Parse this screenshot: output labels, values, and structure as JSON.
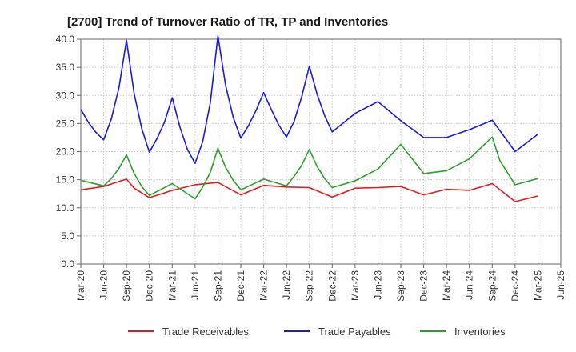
{
  "chart_data": {
    "type": "line",
    "title": "[2700]  Trend of Turnover Ratio of TR, TP and Inventories",
    "xlabel": "",
    "ylabel": "",
    "ylim": [
      0,
      40
    ],
    "yticks": [
      "0.0",
      "5.0",
      "10.0",
      "15.0",
      "20.0",
      "25.0",
      "30.0",
      "35.0",
      "40.0"
    ],
    "xticks": [
      "Mar-20",
      "Jun-20",
      "Sep-20",
      "Dec-20",
      "Mar-21",
      "Jun-21",
      "Sep-21",
      "Dec-21",
      "Mar-22",
      "Jun-22",
      "Sep-22",
      "Dec-22",
      "Mar-23",
      "Jun-23",
      "Sep-23",
      "Dec-23",
      "Mar-24",
      "Jun-24",
      "Sep-24",
      "Dec-24",
      "Mar-25",
      "Jun-25"
    ],
    "grid": true,
    "legend_position": "bottom",
    "series": [
      {
        "name": "Trade Receivables",
        "color": "#e8191c",
        "points": [
          [
            "Mar-20",
            13.2
          ],
          [
            "Jun-20",
            13.8
          ],
          [
            "Sep-20",
            15.1
          ],
          [
            "Oct-20",
            13.5
          ],
          [
            "Dec-20",
            11.8
          ],
          [
            "Mar-21",
            13.1
          ],
          [
            "Jun-21",
            14.1
          ],
          [
            "Sep-21",
            14.5
          ],
          [
            "Dec-21",
            12.3
          ],
          [
            "Mar-22",
            14.0
          ],
          [
            "Jun-22",
            13.7
          ],
          [
            "Sep-22",
            13.6
          ],
          [
            "Dec-22",
            11.9
          ],
          [
            "Mar-23",
            13.5
          ],
          [
            "Jun-23",
            13.6
          ],
          [
            "Sep-23",
            13.8
          ],
          [
            "Dec-23",
            12.3
          ],
          [
            "Mar-24",
            13.3
          ],
          [
            "Jun-24",
            13.1
          ],
          [
            "Sep-24",
            14.3
          ],
          [
            "Dec-24",
            11.1
          ],
          [
            "Mar-25",
            12.1
          ]
        ]
      },
      {
        "name": "Trade Payables",
        "color": "#1a1adc",
        "points": [
          [
            "Mar-20",
            27.5
          ],
          [
            "Apr-20",
            25.2
          ],
          [
            "May-20",
            23.4
          ],
          [
            "Jun-20",
            22.1
          ],
          [
            "Jul-20",
            25.8
          ],
          [
            "Aug-20",
            31.3
          ],
          [
            "Sep-20",
            39.8
          ],
          [
            "Oct-20",
            30.3
          ],
          [
            "Nov-20",
            24.1
          ],
          [
            "Dec-20",
            19.9
          ],
          [
            "Jan-21",
            22.3
          ],
          [
            "Feb-21",
            25.3
          ],
          [
            "Mar-21",
            29.6
          ],
          [
            "Apr-21",
            24.4
          ],
          [
            "May-21",
            20.4
          ],
          [
            "Jun-21",
            17.9
          ],
          [
            "Jul-21",
            21.8
          ],
          [
            "Aug-21",
            28.7
          ],
          [
            "Sep-21",
            40.6
          ],
          [
            "Oct-21",
            31.8
          ],
          [
            "Nov-21",
            26.1
          ],
          [
            "Dec-21",
            22.4
          ],
          [
            "Jan-22",
            24.6
          ],
          [
            "Feb-22",
            27.3
          ],
          [
            "Mar-22",
            30.5
          ],
          [
            "Apr-22",
            27.5
          ],
          [
            "May-22",
            24.7
          ],
          [
            "Jun-22",
            22.6
          ],
          [
            "Jul-22",
            25.4
          ],
          [
            "Aug-22",
            29.8
          ],
          [
            "Sep-22",
            35.2
          ],
          [
            "Oct-22",
            30.3
          ],
          [
            "Nov-22",
            26.4
          ],
          [
            "Dec-22",
            23.5
          ],
          [
            "Mar-23",
            26.8
          ],
          [
            "Jun-23",
            28.9
          ],
          [
            "Sep-23",
            25.5
          ],
          [
            "Dec-23",
            22.5
          ],
          [
            "Mar-24",
            22.5
          ],
          [
            "Jun-24",
            23.9
          ],
          [
            "Sep-24",
            25.6
          ],
          [
            "Dec-24",
            20.0
          ],
          [
            "Mar-25",
            23.1
          ]
        ]
      },
      {
        "name": "Inventories",
        "color": "#2ca02c",
        "points": [
          [
            "Mar-20",
            14.9
          ],
          [
            "Jun-20",
            13.9
          ],
          [
            "Jul-20",
            15.2
          ],
          [
            "Aug-20",
            17.0
          ],
          [
            "Sep-20",
            19.4
          ],
          [
            "Oct-20",
            16.1
          ],
          [
            "Nov-20",
            13.8
          ],
          [
            "Dec-20",
            12.2
          ],
          [
            "Mar-21",
            14.3
          ],
          [
            "Jun-21",
            11.6
          ],
          [
            "Jul-21",
            13.7
          ],
          [
            "Aug-21",
            16.3
          ],
          [
            "Sep-21",
            20.6
          ],
          [
            "Oct-21",
            17.2
          ],
          [
            "Nov-21",
            14.9
          ],
          [
            "Dec-21",
            13.2
          ],
          [
            "Mar-22",
            15.1
          ],
          [
            "Jun-22",
            13.9
          ],
          [
            "Jul-22",
            15.6
          ],
          [
            "Aug-22",
            17.6
          ],
          [
            "Sep-22",
            20.4
          ],
          [
            "Oct-22",
            17.4
          ],
          [
            "Nov-22",
            15.2
          ],
          [
            "Dec-22",
            13.6
          ],
          [
            "Mar-23",
            14.8
          ],
          [
            "Jun-23",
            16.9
          ],
          [
            "Sep-23",
            21.3
          ],
          [
            "Dec-23",
            16.1
          ],
          [
            "Mar-24",
            16.6
          ],
          [
            "Jun-24",
            18.7
          ],
          [
            "Sep-24",
            22.6
          ],
          [
            "Oct-24",
            18.4
          ],
          [
            "Dec-24",
            14.1
          ],
          [
            "Mar-25",
            15.2
          ]
        ]
      }
    ]
  }
}
